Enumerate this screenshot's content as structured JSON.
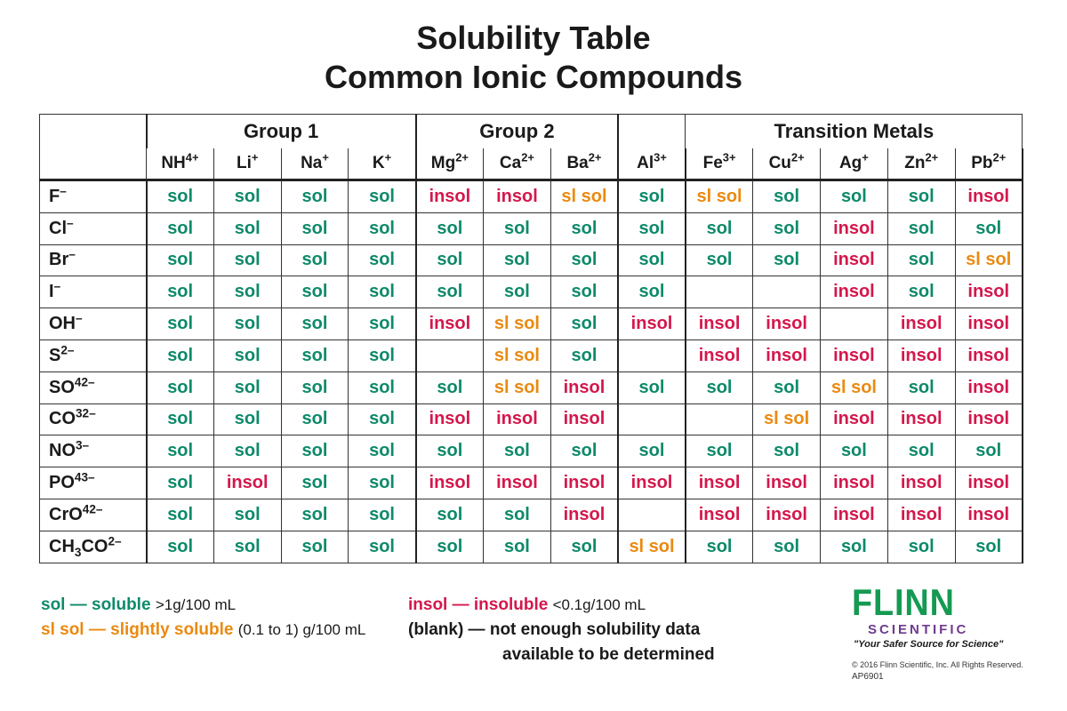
{
  "title_line1": "Solubility Table",
  "title_line2": "Common Ionic Compounds",
  "groups": {
    "group1": "Group 1",
    "group2": "Group 2",
    "transition": "Transition Metals"
  },
  "cations": [
    "NH4+",
    "Li+",
    "Na+",
    "K+",
    "Mg2+",
    "Ca2+",
    "Ba2+",
    "Al3+",
    "Fe3+",
    "Cu2+",
    "Ag+",
    "Zn2+",
    "Pb2+"
  ],
  "rows": [
    {
      "anion": "F–",
      "cells": [
        "sol",
        "sol",
        "sol",
        "sol",
        "insol",
        "insol",
        "sl sol",
        "sol",
        "sl sol",
        "sol",
        "sol",
        "sol",
        "insol"
      ]
    },
    {
      "anion": "Cl–",
      "cells": [
        "sol",
        "sol",
        "sol",
        "sol",
        "sol",
        "sol",
        "sol",
        "sol",
        "sol",
        "sol",
        "insol",
        "sol",
        "sol"
      ]
    },
    {
      "anion": "Br–",
      "cells": [
        "sol",
        "sol",
        "sol",
        "sol",
        "sol",
        "sol",
        "sol",
        "sol",
        "sol",
        "sol",
        "insol",
        "sol",
        "sl sol"
      ]
    },
    {
      "anion": "I–",
      "cells": [
        "sol",
        "sol",
        "sol",
        "sol",
        "sol",
        "sol",
        "sol",
        "sol",
        "",
        "",
        "insol",
        "sol",
        "insol"
      ]
    },
    {
      "anion": "OH–",
      "cells": [
        "sol",
        "sol",
        "sol",
        "sol",
        "insol",
        "sl sol",
        "sol",
        "insol",
        "insol",
        "insol",
        "",
        "insol",
        "insol"
      ]
    },
    {
      "anion": "S2–",
      "cells": [
        "sol",
        "sol",
        "sol",
        "sol",
        "",
        "sl sol",
        "sol",
        "",
        "insol",
        "insol",
        "insol",
        "insol",
        "insol"
      ]
    },
    {
      "anion": "SO42–",
      "cells": [
        "sol",
        "sol",
        "sol",
        "sol",
        "sol",
        "sl sol",
        "insol",
        "sol",
        "sol",
        "sol",
        "sl sol",
        "sol",
        "insol"
      ]
    },
    {
      "anion": "CO32–",
      "cells": [
        "sol",
        "sol",
        "sol",
        "sol",
        "insol",
        "insol",
        "insol",
        "",
        "",
        "sl sol",
        "insol",
        "insol",
        "insol"
      ]
    },
    {
      "anion": "NO3–",
      "cells": [
        "sol",
        "sol",
        "sol",
        "sol",
        "sol",
        "sol",
        "sol",
        "sol",
        "sol",
        "sol",
        "sol",
        "sol",
        "sol"
      ]
    },
    {
      "anion": "PO43–",
      "cells": [
        "sol",
        "insol",
        "sol",
        "sol",
        "insol",
        "insol",
        "insol",
        "insol",
        "insol",
        "insol",
        "insol",
        "insol",
        "insol"
      ]
    },
    {
      "anion": "CrO42–",
      "cells": [
        "sol",
        "sol",
        "sol",
        "sol",
        "sol",
        "sol",
        "insol",
        "",
        "insol",
        "insol",
        "insol",
        "insol",
        "insol"
      ]
    },
    {
      "anion": "CH3CO2–",
      "cells": [
        "sol",
        "sol",
        "sol",
        "sol",
        "sol",
        "sol",
        "sol",
        "sl sol",
        "sol",
        "sol",
        "sol",
        "sol",
        "sol"
      ]
    }
  ],
  "colors": {
    "sol": "#0e8a6a",
    "insol": "#d4174c",
    "sl sol": "#ea8a10"
  },
  "legend": {
    "sol_term": "sol — soluble",
    "sol_desc": ">1g/100 mL",
    "slsol_term": "sl sol — slightly soluble",
    "slsol_desc": "(0.1 to 1) g/100 mL",
    "insol_term": "insol — insoluble",
    "insol_desc": "<0.1g/100 mL",
    "blank_line1": "(blank) — not enough solubility data",
    "blank_line2": "available to be determined"
  },
  "brand": {
    "name": "FLINN",
    "sub": "SCIENTIFIC",
    "tagline": "\"Your Safer Source for Science\"",
    "copyright": "© 2016 Flinn Scientific, Inc. All Rights Reserved.",
    "code": "AP6901"
  }
}
